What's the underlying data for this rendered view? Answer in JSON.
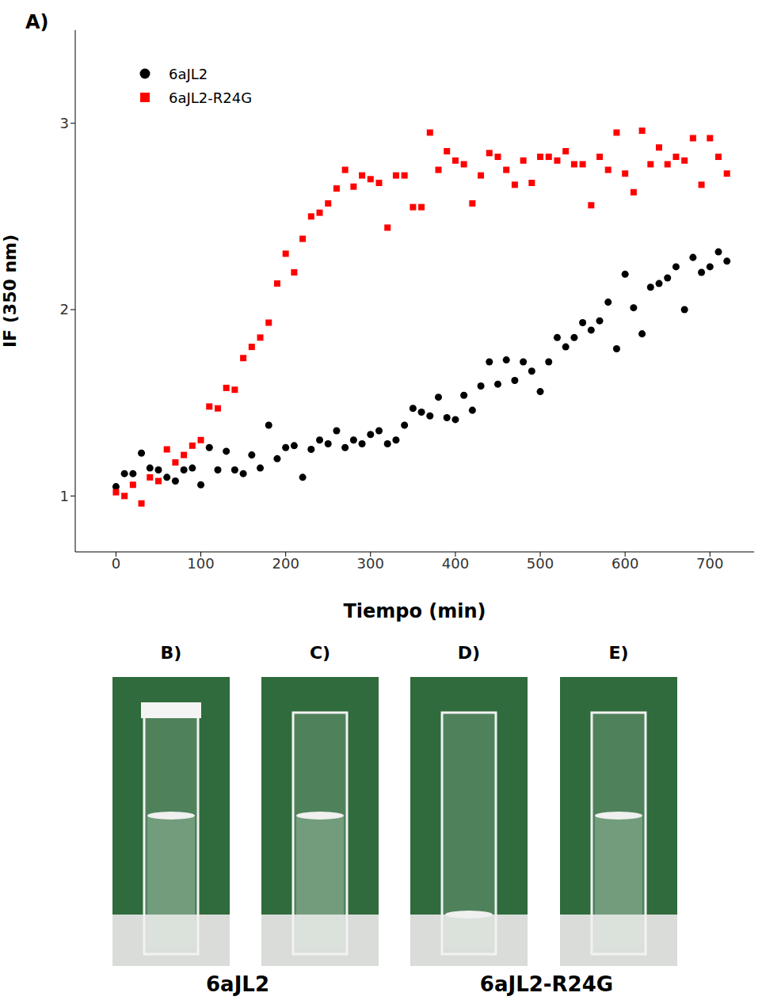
{
  "panel_label": "A)",
  "chart_data": {
    "type": "scatter",
    "x_label": "Tiempo (min)",
    "y_label": "IF (350 nm)",
    "x": [
      0,
      10,
      20,
      30,
      40,
      50,
      60,
      70,
      80,
      90,
      100,
      110,
      120,
      130,
      140,
      150,
      160,
      170,
      180,
      190,
      200,
      210,
      220,
      230,
      240,
      250,
      260,
      270,
      280,
      290,
      300,
      310,
      320,
      330,
      340,
      350,
      360,
      370,
      380,
      390,
      400,
      410,
      420,
      430,
      440,
      450,
      460,
      470,
      480,
      490,
      500,
      510,
      520,
      530,
      540,
      550,
      560,
      570,
      580,
      590,
      600,
      610,
      620,
      630,
      640,
      650,
      660,
      670,
      680,
      690,
      700,
      710,
      720
    ],
    "series": [
      {
        "name": "6aJL2",
        "color": "#000000",
        "marker": "circle",
        "values": [
          1.05,
          1.12,
          1.12,
          1.23,
          1.15,
          1.14,
          1.1,
          1.08,
          1.14,
          1.15,
          1.06,
          1.26,
          1.14,
          1.24,
          1.14,
          1.12,
          1.22,
          1.15,
          1.38,
          1.2,
          1.26,
          1.27,
          1.1,
          1.25,
          1.3,
          1.28,
          1.35,
          1.26,
          1.3,
          1.28,
          1.33,
          1.35,
          1.28,
          1.3,
          1.38,
          1.47,
          1.45,
          1.43,
          1.53,
          1.42,
          1.41,
          1.54,
          1.46,
          1.59,
          1.72,
          1.6,
          1.73,
          1.62,
          1.72,
          1.67,
          1.56,
          1.72,
          1.85,
          1.8,
          1.85,
          1.93,
          1.89,
          1.94,
          2.04,
          1.79,
          2.19,
          2.01,
          1.87,
          2.12,
          2.14,
          2.17,
          2.23,
          2.0,
          2.28,
          2.2,
          2.23,
          2.31,
          2.26
        ]
      },
      {
        "name": "6aJL2-R24G",
        "color": "#ff0000",
        "marker": "square",
        "values": [
          1.02,
          1.0,
          1.06,
          0.96,
          1.1,
          1.08,
          1.25,
          1.18,
          1.22,
          1.27,
          1.3,
          1.48,
          1.47,
          1.58,
          1.57,
          1.74,
          1.8,
          1.85,
          1.93,
          2.14,
          2.3,
          2.2,
          2.38,
          2.5,
          2.52,
          2.57,
          2.65,
          2.75,
          2.66,
          2.72,
          2.7,
          2.68,
          2.44,
          2.72,
          2.72,
          2.55,
          2.55,
          2.95,
          2.75,
          2.85,
          2.8,
          2.78,
          2.57,
          2.72,
          2.84,
          2.82,
          2.75,
          2.67,
          2.8,
          2.68,
          2.82,
          2.82,
          2.8,
          2.85,
          2.78,
          2.78,
          2.56,
          2.82,
          2.75,
          2.95,
          2.73,
          2.63,
          2.96,
          2.78,
          2.87,
          2.78,
          2.82,
          2.8,
          2.92,
          2.67,
          2.92,
          2.82,
          2.73
        ]
      }
    ],
    "xlim": [
      -48,
      752
    ],
    "xticks": [
      0,
      100,
      200,
      300,
      400,
      500,
      600,
      700
    ],
    "ylim": [
      0.7,
      3.5
    ],
    "yticks": [
      1,
      2,
      3
    ],
    "legend": "upper left",
    "grid": false
  },
  "photos": {
    "panels": [
      "B)",
      "C)",
      "D)",
      "E)"
    ],
    "groups": [
      "6aJL2",
      "6aJL2-R24G"
    ]
  }
}
